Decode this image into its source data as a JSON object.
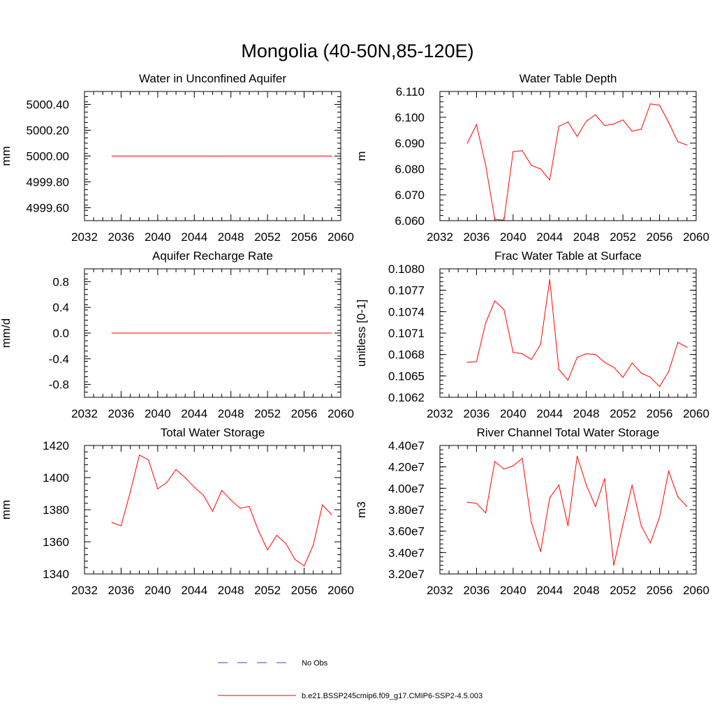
{
  "figure_title": "Mongolia (40-50N,85-120E)",
  "legend": {
    "obs_label": "No Obs",
    "model_label": "b.e21.BSSP245cmip6.f09_g17.CMIP6-SSP2-4.5.003",
    "obs_color": "#3c3ccc",
    "model_color": "#ff0000"
  },
  "chart_data": [
    {
      "type": "line",
      "title": "Water in Unconfined Aquifer",
      "ylabel": "mm",
      "xlim": [
        2032,
        2060
      ],
      "ylim": [
        4999.5,
        5000.5
      ],
      "xticks": [
        2032,
        2036,
        2040,
        2044,
        2048,
        2052,
        2056,
        2060
      ],
      "xtick_labels": [
        "2032",
        "2036",
        "2040",
        "2044",
        "2048",
        "2052",
        "2056",
        "2060"
      ],
      "yticks": [
        4999.6,
        4999.8,
        5000.0,
        5000.2,
        5000.4
      ],
      "ytick_labels": [
        "4999.60",
        "4999.80",
        "5000.00",
        "5000.20",
        "5000.40"
      ],
      "series": [
        {
          "x": [
            2035,
            2036,
            2037,
            2038,
            2039,
            2040,
            2041,
            2042,
            2043,
            2044,
            2045,
            2046,
            2047,
            2048,
            2049,
            2050,
            2051,
            2052,
            2053,
            2054,
            2055,
            2056,
            2057,
            2058,
            2059
          ],
          "y": [
            5000,
            5000,
            5000,
            5000,
            5000,
            5000,
            5000,
            5000,
            5000,
            5000,
            5000,
            5000,
            5000,
            5000,
            5000,
            5000,
            5000,
            5000,
            5000,
            5000,
            5000,
            5000,
            5000,
            5000,
            5000
          ]
        }
      ]
    },
    {
      "type": "line",
      "title": "Water Table Depth",
      "ylabel": "m",
      "xlim": [
        2032,
        2060
      ],
      "ylim": [
        6.06,
        6.11
      ],
      "xticks": [
        2032,
        2036,
        2040,
        2044,
        2048,
        2052,
        2056,
        2060
      ],
      "xtick_labels": [
        "2032",
        "2036",
        "2040",
        "2044",
        "2048",
        "2052",
        "2056",
        "2060"
      ],
      "yticks": [
        6.06,
        6.07,
        6.08,
        6.09,
        6.1,
        6.11
      ],
      "ytick_labels": [
        "6.060",
        "6.070",
        "6.080",
        "6.090",
        "6.100",
        "6.110"
      ],
      "series": [
        {
          "x": [
            2035,
            2036,
            2037,
            2038,
            2039,
            2040,
            2041,
            2042,
            2043,
            2044,
            2045,
            2046,
            2047,
            2048,
            2049,
            2050,
            2051,
            2052,
            2053,
            2054,
            2055,
            2056,
            2057,
            2058,
            2059
          ],
          "y": [
            6.09,
            6.0972,
            6.0815,
            6.0605,
            6.0602,
            6.0867,
            6.0871,
            6.0814,
            6.08,
            6.0758,
            6.0965,
            6.0982,
            6.0926,
            6.0985,
            6.101,
            6.0968,
            6.0974,
            6.099,
            6.0946,
            6.0954,
            6.1052,
            6.1047,
            6.098,
            6.0905,
            6.0893
          ]
        }
      ]
    },
    {
      "type": "line",
      "title": "Aquifer Recharge Rate",
      "ylabel": "mm/d",
      "xlim": [
        2032,
        2060
      ],
      "ylim": [
        -1.0,
        1.0
      ],
      "xticks": [
        2032,
        2036,
        2040,
        2044,
        2048,
        2052,
        2056,
        2060
      ],
      "xtick_labels": [
        "2032",
        "2036",
        "2040",
        "2044",
        "2048",
        "2052",
        "2056",
        "2060"
      ],
      "yticks": [
        -0.8,
        -0.4,
        0.0,
        0.4,
        0.8
      ],
      "ytick_labels": [
        "-0.8",
        "-0.4",
        "0.0",
        "0.4",
        "0.8"
      ],
      "series": [
        {
          "x": [
            2035,
            2036,
            2037,
            2038,
            2039,
            2040,
            2041,
            2042,
            2043,
            2044,
            2045,
            2046,
            2047,
            2048,
            2049,
            2050,
            2051,
            2052,
            2053,
            2054,
            2055,
            2056,
            2057,
            2058,
            2059
          ],
          "y": [
            0,
            0,
            0,
            0,
            0,
            0,
            0,
            0,
            0,
            0,
            0,
            0,
            0,
            0,
            0,
            0,
            0,
            0,
            0,
            0,
            0,
            0,
            0,
            0,
            0
          ]
        }
      ]
    },
    {
      "type": "line",
      "title": "Frac Water Table at Surface",
      "ylabel": "unitless [0-1]",
      "xlim": [
        2032,
        2060
      ],
      "ylim": [
        0.1062,
        0.108
      ],
      "xticks": [
        2032,
        2036,
        2040,
        2044,
        2048,
        2052,
        2056,
        2060
      ],
      "xtick_labels": [
        "2032",
        "2036",
        "2040",
        "2044",
        "2048",
        "2052",
        "2056",
        "2060"
      ],
      "yticks": [
        0.1062,
        0.1065,
        0.1068,
        0.1071,
        0.1074,
        0.1077,
        0.108
      ],
      "ytick_labels": [
        "0.1062",
        "0.1065",
        "0.1068",
        "0.1071",
        "0.1074",
        "0.1077",
        "0.1080"
      ],
      "series": [
        {
          "x": [
            2035,
            2036,
            2037,
            2038,
            2039,
            2040,
            2041,
            2042,
            2043,
            2044,
            2045,
            2046,
            2047,
            2048,
            2049,
            2050,
            2051,
            2052,
            2053,
            2054,
            2055,
            2056,
            2057,
            2058,
            2059
          ],
          "y": [
            0.10669,
            0.1067,
            0.10724,
            0.10755,
            0.10743,
            0.10683,
            0.10681,
            0.10673,
            0.10694,
            0.10785,
            0.10659,
            0.10644,
            0.10676,
            0.10681,
            0.1068,
            0.10669,
            0.10662,
            0.10648,
            0.10668,
            0.10654,
            0.10648,
            0.10635,
            0.10656,
            0.10697,
            0.1069
          ]
        }
      ]
    },
    {
      "type": "line",
      "title": "Total Water Storage",
      "ylabel": "mm",
      "xlim": [
        2032,
        2060
      ],
      "ylim": [
        1340,
        1420
      ],
      "xticks": [
        2032,
        2036,
        2040,
        2044,
        2048,
        2052,
        2056,
        2060
      ],
      "xtick_labels": [
        "2032",
        "2036",
        "2040",
        "2044",
        "2048",
        "2052",
        "2056",
        "2060"
      ],
      "yticks": [
        1340,
        1360,
        1380,
        1400,
        1420
      ],
      "ytick_labels": [
        "1340",
        "1360",
        "1380",
        "1400",
        "1420"
      ],
      "series": [
        {
          "x": [
            2035,
            2036,
            2037,
            2038,
            2039,
            2040,
            2041,
            2042,
            2043,
            2044,
            2045,
            2046,
            2047,
            2048,
            2049,
            2050,
            2051,
            2052,
            2053,
            2054,
            2055,
            2056,
            2057,
            2058,
            2059
          ],
          "y": [
            1372,
            1370,
            1391,
            1414,
            1411,
            1393,
            1397,
            1405,
            1400,
            1394,
            1389,
            1379,
            1392,
            1386,
            1381,
            1382,
            1367,
            1355,
            1364,
            1359,
            1349,
            1345,
            1358,
            1383,
            1377
          ]
        }
      ]
    },
    {
      "type": "line",
      "title": "River Channel Total Water Storage",
      "ylabel": "m3",
      "xlim": [
        2032,
        2060
      ],
      "ylim": [
        32000000,
        44000000
      ],
      "xticks": [
        2032,
        2036,
        2040,
        2044,
        2048,
        2052,
        2056,
        2060
      ],
      "xtick_labels": [
        "2032",
        "2036",
        "2040",
        "2044",
        "2048",
        "2052",
        "2056",
        "2060"
      ],
      "yticks": [
        32000000,
        34000000,
        36000000,
        38000000,
        40000000,
        42000000,
        44000000
      ],
      "ytick_labels": [
        "3.20e7",
        "3.40e7",
        "3.60e7",
        "3.80e7",
        "4.00e7",
        "4.20e7",
        "4.40e7"
      ],
      "series": [
        {
          "x": [
            2035,
            2036,
            2037,
            2038,
            2039,
            2040,
            2041,
            2042,
            2043,
            2044,
            2045,
            2046,
            2047,
            2048,
            2049,
            2050,
            2051,
            2052,
            2053,
            2054,
            2055,
            2056,
            2057,
            2058,
            2059
          ],
          "y": [
            38700000,
            38600000,
            37700000,
            42500000,
            41800000,
            42100000,
            42800000,
            36800000,
            34100000,
            39100000,
            40300000,
            36500000,
            43000000,
            40300000,
            38300000,
            40900000,
            32800000,
            36600000,
            40300000,
            36500000,
            34900000,
            37300000,
            41600000,
            39200000,
            38300000
          ]
        }
      ]
    }
  ]
}
